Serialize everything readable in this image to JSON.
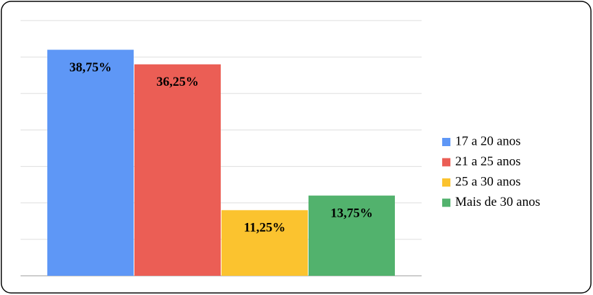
{
  "chart_data": {
    "type": "bar",
    "series": [
      {
        "name": "17 a 20 anos",
        "color": "#5e97f6",
        "values": [
          38.75
        ],
        "value_labels": [
          "38,75%"
        ]
      },
      {
        "name": "21 a 25 anos",
        "color": "#eb5e55",
        "values": [
          36.25
        ],
        "value_labels": [
          "36,25%"
        ]
      },
      {
        "name": "25 a 30 anos",
        "color": "#fbc32f",
        "values": [
          11.25
        ],
        "value_labels": [
          "11,25%"
        ]
      },
      {
        "name": "Mais de 30 anos",
        "color": "#52b26d",
        "values": [
          13.75
        ],
        "value_labels": [
          "13,75%"
        ]
      }
    ],
    "ylim": [
      0,
      43.75
    ],
    "yticks": [
      0,
      6.25,
      12.5,
      18.75,
      25,
      31.25,
      37.5,
      43.75
    ],
    "grid": true,
    "legend": "right"
  }
}
